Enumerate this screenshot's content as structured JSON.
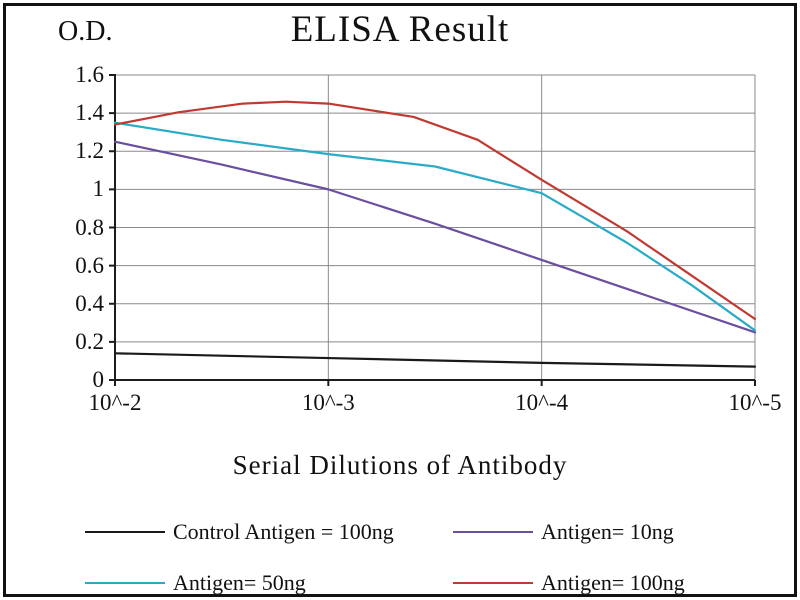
{
  "chart_data": {
    "type": "line",
    "title": "ELISA Result",
    "ylabel": "O.D.",
    "xlabel": "Serial Dilutions  of Antibody",
    "xlim": [
      2,
      5
    ],
    "ylim": [
      0,
      1.6
    ],
    "grid": true,
    "grid_color": "#8a8a8a",
    "axis_color": "#1c1c1c",
    "legend_position": "bottom",
    "x_ticks": [
      {
        "label": "10^-2",
        "value": 2
      },
      {
        "label": "10^-3",
        "value": 3
      },
      {
        "label": "10^-4",
        "value": 4
      },
      {
        "label": "10^-5",
        "value": 5
      }
    ],
    "y_ticks": [
      {
        "label": "0",
        "value": 0
      },
      {
        "label": "0.2",
        "value": 0.2
      },
      {
        "label": "0.4",
        "value": 0.4
      },
      {
        "label": "0.6",
        "value": 0.6
      },
      {
        "label": "0.8",
        "value": 0.8
      },
      {
        "label": "1",
        "value": 1
      },
      {
        "label": "1.2",
        "value": 1.2
      },
      {
        "label": "1.4",
        "value": 1.4
      },
      {
        "label": "1.6",
        "value": 1.6
      }
    ],
    "series": [
      {
        "id": "control-antigen-100ng",
        "name": "Control Antigen = 100ng",
        "color": "#1a1a1a",
        "x": [
          2,
          3,
          4,
          5
        ],
        "values": [
          0.14,
          0.115,
          0.09,
          0.07
        ]
      },
      {
        "id": "antigen-10ng",
        "name": "Antigen= 10ng",
        "color": "#6a4fa0",
        "x": [
          2,
          2.5,
          3,
          3.5,
          4,
          4.5,
          5
        ],
        "values": [
          1.25,
          1.13,
          1.0,
          0.82,
          0.63,
          0.44,
          0.25
        ]
      },
      {
        "id": "antigen-50ng",
        "name": "Antigen= 50ng",
        "color": "#29abc8",
        "x": [
          2,
          2.5,
          3,
          3.5,
          4,
          4.4,
          4.7,
          5
        ],
        "values": [
          1.35,
          1.26,
          1.185,
          1.12,
          0.98,
          0.72,
          0.5,
          0.26
        ]
      },
      {
        "id": "antigen-100ng",
        "name": "Antigen= 100ng",
        "color": "#c03a32",
        "x": [
          2,
          2.3,
          2.6,
          2.8,
          3.0,
          3.4,
          3.7,
          4.0,
          4.4,
          4.7,
          5.0
        ],
        "values": [
          1.34,
          1.405,
          1.45,
          1.46,
          1.45,
          1.38,
          1.26,
          1.05,
          0.78,
          0.55,
          0.32
        ]
      }
    ]
  }
}
